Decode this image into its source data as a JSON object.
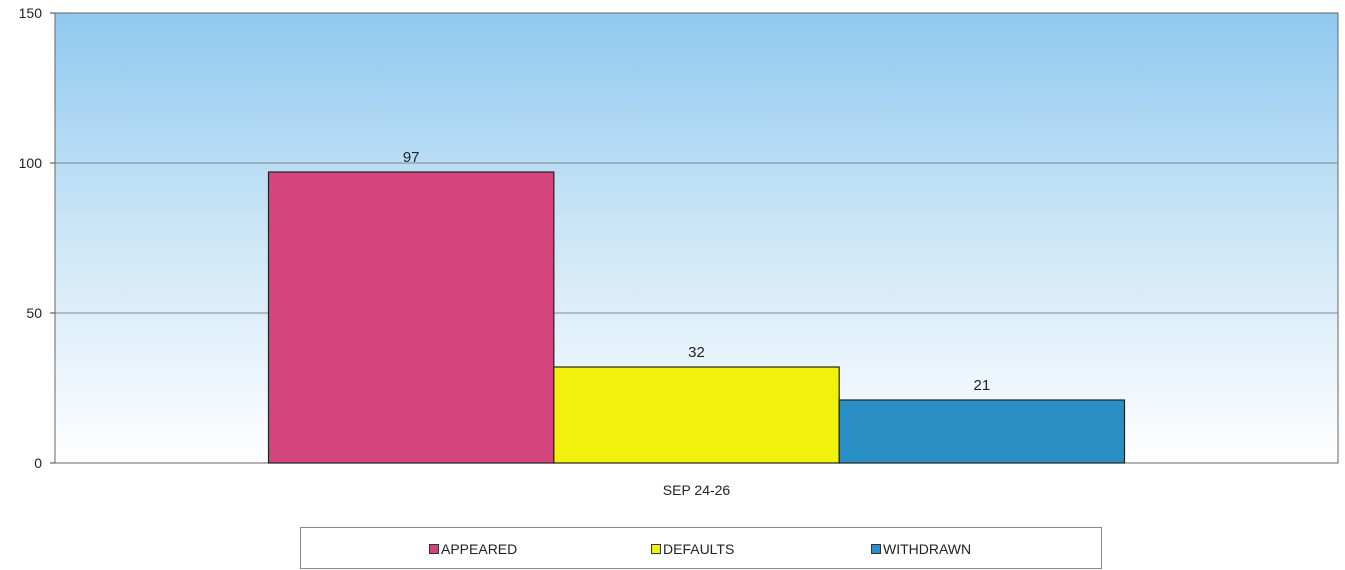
{
  "chart_data": {
    "type": "bar",
    "title": "",
    "xlabel": "",
    "ylabel": "",
    "categories": [
      "SEP 24-26"
    ],
    "series": [
      {
        "name": "APPEARED",
        "values": [
          97
        ],
        "color": "#d4457e"
      },
      {
        "name": "DEFAULTS",
        "values": [
          32
        ],
        "color": "#f1f20c"
      },
      {
        "name": "WITHDRAWN",
        "values": [
          21
        ],
        "color": "#2a8fc4"
      }
    ],
    "ylim": [
      0,
      150
    ],
    "yticks": [
      "0",
      "50",
      "100",
      "150"
    ],
    "data_labels": [
      "97",
      "32",
      "21"
    ],
    "grid": true,
    "legend_position": "bottom",
    "background": "sky-blue gradient"
  }
}
